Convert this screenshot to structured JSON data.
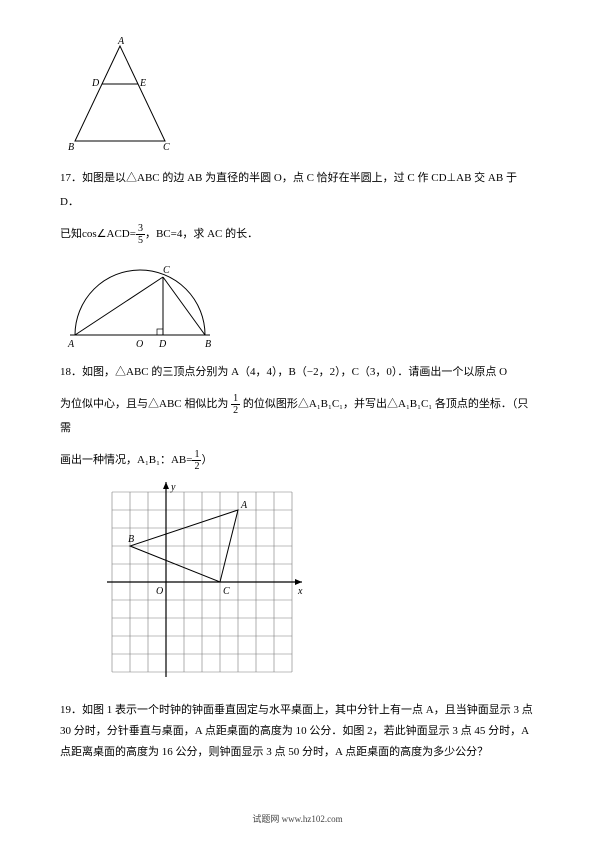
{
  "triangle": {
    "labels": {
      "A": "A",
      "B": "B",
      "C": "C",
      "D": "D",
      "E": "E"
    },
    "stroke": "#000000",
    "fontsize": 10
  },
  "q17": {
    "text_a": "17．如图是以△ABC 的边 AB 为直径的半圆 O，点 C 恰好在半圆上，过 C 作 CD⊥AB 交 AB 于 D．",
    "text_b_pre": "已知cos∠ACD=",
    "frac_num": "3",
    "frac_den": "5",
    "text_b_mid": "，BC=4，求 AC 的长．",
    "svg": {
      "labels": {
        "A": "A",
        "B": "B",
        "C": "C",
        "D": "D",
        "O": "O"
      },
      "stroke": "#000000"
    }
  },
  "q18": {
    "text_a": "18．如图，△ABC 的三顶点分别为 A（4，4），B（−2，2），C（3，0）．请画出一个以原点 O",
    "text_b_pre": "为位似中心，且与△ABC 相似比为 ",
    "frac1_num": "1",
    "frac1_den": "2",
    "text_b_mid": " 的位似图形△A₁B₁C₁，并写出△A₁B₁C₁ 各顶点的坐标．（只需",
    "text_c_pre": "画出一种情况，A₁B₁：AB=",
    "frac2_num": "1",
    "frac2_den": "2",
    "text_c_post": "）",
    "svg": {
      "labels": {
        "A": "A",
        "B": "B",
        "C": "C",
        "O": "O",
        "y": "y",
        "x": "x"
      },
      "grid_color": "#7a7a7a",
      "axis_color": "#000000",
      "bg": "#ffffff",
      "cell": 18,
      "cols": 10,
      "rows": 10,
      "originCol": 3,
      "originRow": 5,
      "A": [
        4,
        4
      ],
      "B": [
        -2,
        2
      ],
      "C": [
        3,
        0
      ]
    }
  },
  "q19": {
    "text": "19．如图 1 表示一个时钟的钟面垂直固定与水平桌面上，其中分针上有一点 A，且当钟面显示 3 点 30 分时，分针垂直与桌面，A 点距桌面的高度为 10 公分．如图 2，若此钟面显示 3 点 45 分时，A 点距离桌面的高度为 16 公分，则钟面显示 3 点 50 分时，A 点距桌面的高度为多少公分？"
  },
  "footer": "试题网   www.hz102.com"
}
